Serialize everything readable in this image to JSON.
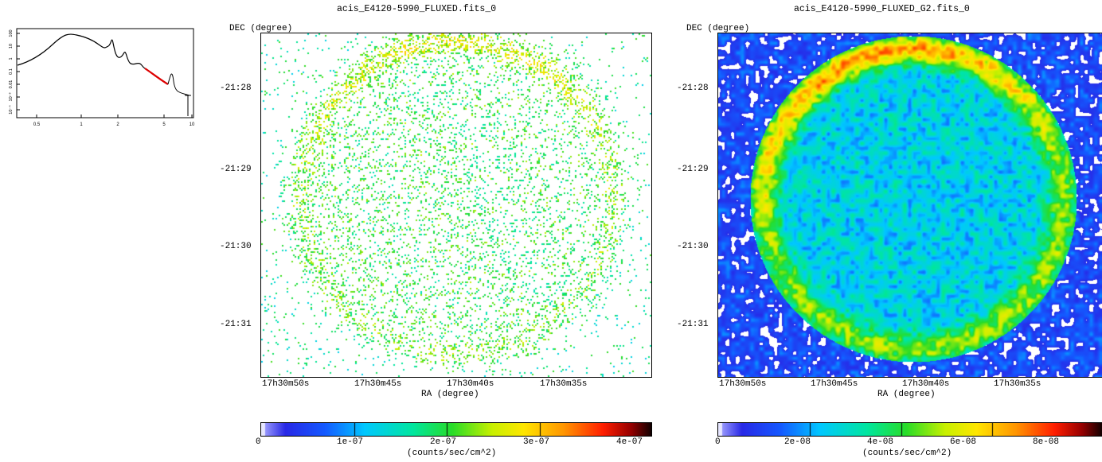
{
  "spectrum": {
    "xticks": [
      "0.5",
      "1",
      "2",
      "5",
      "10"
    ],
    "yticks": [
      "100",
      "10",
      "1",
      "0.1",
      "0.01",
      "10⁻³",
      "10⁻⁴"
    ]
  },
  "panels": [
    {
      "title": "acis_E4120-5990_FLUXED.fits_0",
      "ylabel": "DEC (degree)",
      "xlabel": "RA (degree)",
      "dec_ticks": [
        "-21:28",
        "-21:29",
        "-21:30",
        "-21:31"
      ],
      "ra_ticks": [
        "17h30m50s",
        "17h30m45s",
        "17h30m40s",
        "17h30m35s"
      ],
      "colorbar": {
        "ticks": [
          "0",
          "1e-07",
          "2e-07",
          "3e-07",
          "4e-07"
        ],
        "unit": "(counts/sec/cm^2)"
      }
    },
    {
      "title": "acis_E4120-5990_FLUXED_G2.fits_0",
      "ylabel": "DEC (degree)",
      "xlabel": "RA (degree)",
      "dec_ticks": [
        "-21:28",
        "-21:29",
        "-21:30",
        "-21:31"
      ],
      "ra_ticks": [
        "17h30m50s",
        "17h30m45s",
        "17h30m40s",
        "17h30m35s"
      ],
      "colorbar": {
        "ticks": [
          "0",
          "2e-08",
          "4e-08",
          "6e-08",
          "8e-08"
        ],
        "unit": "(counts/sec/cm^2)"
      }
    }
  ]
}
